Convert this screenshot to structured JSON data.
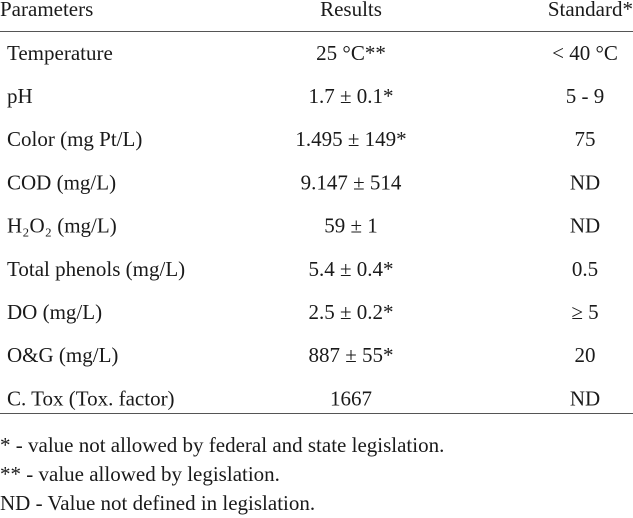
{
  "table": {
    "header": [
      "Parameters",
      "Results",
      "Standard*"
    ],
    "rows": [
      [
        "Temperature",
        "25 °C**",
        "< 40 °C"
      ],
      [
        "pH",
        "1.7 ± 0.1*",
        "5 - 9"
      ],
      [
        "Color (mg Pt/L)",
        "1.495 ± 149*",
        "75"
      ],
      [
        "COD (mg/L)",
        "9.147 ± 514",
        "ND"
      ],
      [
        "H₂O₂ (mg/L)",
        "59 ± 1",
        "ND"
      ],
      [
        "Total phenols (mg/L)",
        "5.4 ± 0.4*",
        "0.5"
      ],
      [
        "DO (mg/L)",
        "2.5 ± 0.2*",
        "≥ 5"
      ],
      [
        "O&G (mg/L)",
        "887 ± 55*",
        "20"
      ],
      [
        "C. Tox (Tox. factor)",
        "1667",
        "ND"
      ]
    ]
  },
  "footnotes": [
    "* - value not allowed by federal and state legislation.",
    "** - value allowed by legislation.",
    "ND - Value not defined in legislation."
  ]
}
